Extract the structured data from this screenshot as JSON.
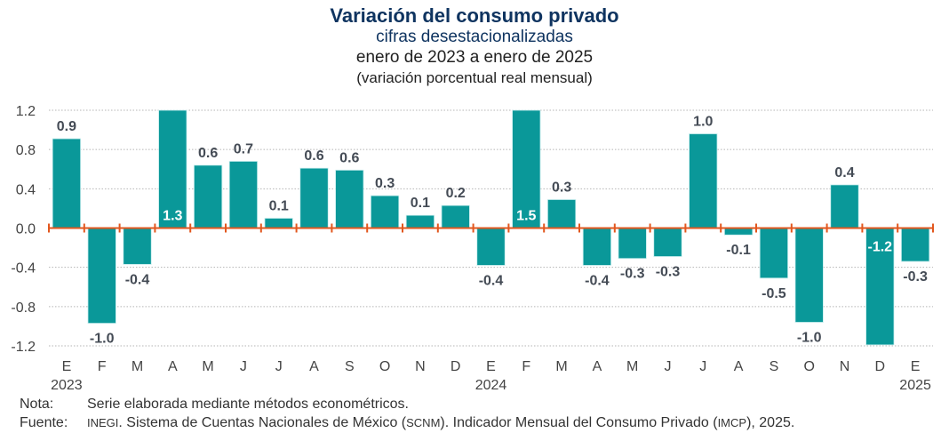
{
  "header": {
    "title": "Variación del consumo privado",
    "subtitle": "cifras desestacionalizadas",
    "period": "enero de 2023 a enero de 2025",
    "units": "(variación porcentual real mensual)"
  },
  "notes": {
    "nota_label": "Nota:",
    "nota_text": "Serie elaborada mediante métodos econométricos.",
    "fuente_label": "Fuente:",
    "fuente_parts": {
      "inegi": "INEGI",
      "t1": ". Sistema de Cuentas Nacionales de México (",
      "scnm": "SCNM",
      "t2": "). Indicador Mensual del Consumo Privado (",
      "imcp": "IMCP",
      "t3": "), 2025."
    }
  },
  "colors": {
    "bar": "#0a9899",
    "axis": "#e2571e",
    "grid": "#b5b5b5",
    "label": "#444b55",
    "inner_label": "#ffffff"
  },
  "chart_data": {
    "type": "bar",
    "title": "Variación del consumo privado",
    "subtitle": "cifras desestacionalizadas, enero de 2023 a enero de 2025",
    "xlabel": "",
    "ylabel": "variación porcentual real mensual",
    "ylim": [
      -1.2,
      1.2
    ],
    "yticks": [
      1.2,
      0.8,
      0.4,
      0.0,
      -0.4,
      -0.8,
      -1.2
    ],
    "ytick_labels": [
      "1.2",
      "0.8",
      "0.4",
      "0.0",
      "-0.4",
      "-0.8",
      "-1.2"
    ],
    "grid": true,
    "categories": [
      "E",
      "F",
      "M",
      "A",
      "M",
      "J",
      "J",
      "A",
      "S",
      "O",
      "N",
      "D",
      "E",
      "F",
      "M",
      "A",
      "M",
      "J",
      "J",
      "A",
      "S",
      "O",
      "N",
      "D",
      "E"
    ],
    "year_labels": [
      {
        "index": 0,
        "label": "2023"
      },
      {
        "index": 12,
        "label": "2024"
      },
      {
        "index": 24,
        "label": "2025"
      }
    ],
    "values": [
      0.9,
      -1.0,
      -0.4,
      1.3,
      0.6,
      0.7,
      0.1,
      0.6,
      0.6,
      0.3,
      0.1,
      0.2,
      -0.4,
      1.5,
      0.3,
      -0.4,
      -0.3,
      -0.3,
      1.0,
      -0.1,
      -0.5,
      -1.0,
      0.4,
      -1.2,
      -0.3
    ],
    "bar_heights_displayed": [
      0.91,
      -0.97,
      -0.37,
      1.2,
      0.64,
      0.68,
      0.1,
      0.61,
      0.59,
      0.33,
      0.13,
      0.23,
      -0.38,
      1.2,
      0.29,
      -0.38,
      -0.31,
      -0.29,
      0.96,
      -0.07,
      -0.51,
      -0.96,
      0.44,
      -1.19,
      -0.34
    ],
    "data_labels": [
      "0.9",
      "-1.0",
      "-0.4",
      "1.3",
      "0.6",
      "0.7",
      "0.1",
      "0.6",
      "0.6",
      "0.3",
      "0.1",
      "0.2",
      "-0.4",
      "1.5",
      "0.3",
      "-0.4",
      "-0.3",
      "-0.3",
      "1.0",
      "-0.1",
      "-0.5",
      "-1.0",
      "0.4",
      "-1.2",
      "-0.3"
    ],
    "clipped_indices": [
      3,
      13,
      23
    ]
  }
}
